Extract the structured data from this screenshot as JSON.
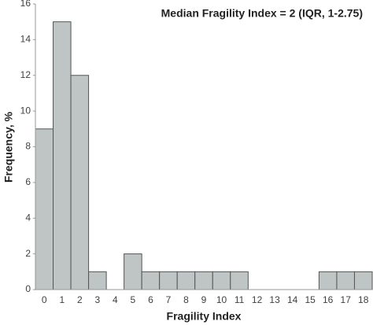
{
  "chart_data": {
    "type": "bar",
    "annotation": "Median Fragility Index = 2 (IQR, 1-2.75)",
    "x_label": "Fragility Index",
    "y_label": "Frequency, %",
    "categories": [
      "0",
      "1",
      "2",
      "3",
      "4",
      "5",
      "6",
      "7",
      "8",
      "9",
      "10",
      "11",
      "12",
      "13",
      "14",
      "15",
      "16",
      "17",
      "18"
    ],
    "values": [
      9,
      15,
      12,
      1,
      0,
      2,
      1,
      1,
      1,
      1,
      1,
      1,
      0,
      0,
      0,
      0,
      1,
      1,
      1
    ],
    "color": "#bfc4c4",
    "ylim": [
      0,
      16
    ],
    "yticks": [
      0,
      2,
      4,
      6,
      8,
      10,
      12,
      14,
      16
    ],
    "grid": false
  }
}
